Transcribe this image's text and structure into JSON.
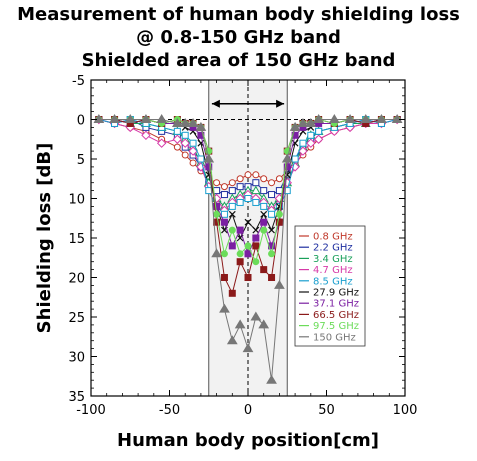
{
  "chart_data": {
    "type": "line",
    "title_lines": [
      "Measurement  of human body shielding loss",
      "@ 0.8-150  GHz band",
      "Shielded  area of 150  GHz band"
    ],
    "xlabel": "Human body position[cm]",
    "ylabel": "Shielding loss [dB]",
    "xlim": [
      -100,
      100
    ],
    "ylim": [
      -5,
      35
    ],
    "y_inverted": true,
    "xticks": [
      -100,
      -50,
      0,
      50,
      100
    ],
    "yticks": [
      -5,
      0,
      5,
      10,
      15,
      20,
      25,
      30,
      35
    ],
    "grid": "dashed-zero-lines",
    "legend_position": "right-center",
    "shielded_area": {
      "x": [
        -25,
        25
      ]
    },
    "series": [
      {
        "name": "0.8 GHz",
        "color": "#c0392b",
        "marker": "circle-open",
        "x": [
          -95,
          -85,
          -75,
          -65,
          -55,
          -45,
          -40,
          -35,
          -30,
          -25,
          -20,
          -15,
          -10,
          -5,
          0,
          5,
          10,
          15,
          20,
          25,
          30,
          35,
          40,
          45,
          55,
          65,
          75,
          85,
          95
        ],
        "y": [
          0,
          0.5,
          1,
          1.5,
          2.5,
          3.5,
          4.5,
          5.5,
          6.5,
          7.5,
          8,
          8.5,
          8,
          7.5,
          7,
          7,
          7.5,
          8,
          7.5,
          6.5,
          5.5,
          4.5,
          3.5,
          2.5,
          1.5,
          1,
          0.5,
          0,
          0
        ]
      },
      {
        "name": "2.2 GHz",
        "color": "#1f2fa0",
        "marker": "square-open",
        "x": [
          -95,
          -85,
          -75,
          -65,
          -55,
          -45,
          -40,
          -35,
          -30,
          -25,
          -20,
          -15,
          -10,
          -5,
          0,
          5,
          10,
          15,
          20,
          25,
          30,
          35,
          40,
          45,
          55,
          65,
          75,
          85,
          95
        ],
        "y": [
          0,
          0.5,
          0,
          1,
          1.5,
          2,
          3.5,
          4.5,
          6,
          8,
          9,
          9.5,
          9,
          8.5,
          8.5,
          8,
          9,
          9.5,
          9,
          7,
          5,
          3.5,
          2.5,
          1.5,
          1,
          0.5,
          0,
          0.5,
          0
        ]
      },
      {
        "name": "3.4 GHz",
        "color": "#1aa05a",
        "marker": "triangle-open",
        "x": [
          -95,
          -85,
          -75,
          -65,
          -55,
          -45,
          -40,
          -35,
          -30,
          -25,
          -20,
          -15,
          -10,
          -5,
          0,
          5,
          10,
          15,
          20,
          25,
          30,
          35,
          40,
          45,
          55,
          65,
          75,
          85,
          95
        ],
        "y": [
          0,
          0,
          0.5,
          0.5,
          1,
          1.5,
          2.5,
          3.5,
          5.5,
          8,
          10,
          11,
          10,
          9.5,
          9,
          9,
          10,
          11,
          10,
          8,
          5.5,
          3.5,
          2,
          1.5,
          1,
          0.5,
          0.5,
          0,
          0
        ]
      },
      {
        "name": "4.7 GHz",
        "color": "#d63aa8",
        "marker": "diamond-open",
        "x": [
          -95,
          -85,
          -75,
          -65,
          -55,
          -45,
          -40,
          -35,
          -30,
          -25,
          -20,
          -15,
          -10,
          -5,
          0,
          5,
          10,
          15,
          20,
          25,
          30,
          35,
          40,
          45,
          55,
          65,
          75,
          85,
          95
        ],
        "y": [
          0,
          0.5,
          1,
          2,
          3,
          2.5,
          3,
          4,
          6,
          8.5,
          10,
          11.5,
          10.5,
          10,
          9.5,
          10,
          10.5,
          11.5,
          10,
          8,
          6,
          4,
          3,
          2.5,
          1.5,
          1,
          0.5,
          0.5,
          0
        ]
      },
      {
        "name": "8.5 GHz",
        "color": "#1a9fcf",
        "marker": "square-open",
        "x": [
          -95,
          -85,
          -75,
          -65,
          -55,
          -45,
          -40,
          -35,
          -30,
          -25,
          -20,
          -15,
          -10,
          -5,
          0,
          5,
          10,
          15,
          20,
          25,
          30,
          35,
          40,
          45,
          55,
          65,
          75,
          85,
          95
        ],
        "y": [
          0,
          0.5,
          0,
          0.5,
          1,
          1.5,
          2,
          3,
          5,
          9,
          11,
          12,
          11,
          10.5,
          10,
          10.5,
          11,
          12,
          11,
          9,
          5,
          3,
          2,
          1.5,
          1,
          0.5,
          0,
          0.5,
          0
        ]
      },
      {
        "name": "27.9 GHz",
        "color": "#111111",
        "marker": "x",
        "x": [
          -95,
          -85,
          -75,
          -65,
          -55,
          -45,
          -40,
          -35,
          -30,
          -25,
          -20,
          -15,
          -10,
          -5,
          0,
          5,
          10,
          15,
          20,
          25,
          30,
          35,
          40,
          45,
          55,
          65,
          75,
          85,
          95
        ],
        "y": [
          0,
          0,
          0.5,
          0,
          0.5,
          0.5,
          1,
          1.5,
          3,
          7,
          11,
          14,
          12,
          15,
          13,
          14,
          12,
          14,
          11,
          7,
          3,
          1.5,
          1,
          0.5,
          0.5,
          0,
          0.5,
          0,
          0
        ]
      },
      {
        "name": "37.1 GHz",
        "color": "#7b1fa2",
        "marker": "square-filled",
        "x": [
          -95,
          -85,
          -75,
          -65,
          -55,
          -45,
          -40,
          -35,
          -30,
          -25,
          -20,
          -15,
          -10,
          -5,
          0,
          5,
          10,
          15,
          20,
          25,
          30,
          35,
          40,
          45,
          55,
          65,
          75,
          85,
          95
        ],
        "y": [
          0,
          0,
          0.5,
          0,
          0.5,
          0.5,
          0.5,
          1,
          2,
          6,
          11,
          13,
          16,
          14,
          17,
          15,
          13,
          16,
          13,
          6,
          2,
          1,
          0.5,
          0.5,
          0.5,
          0,
          0.5,
          0,
          0
        ]
      },
      {
        "name": "66.5 GHz",
        "color": "#8b1a1a",
        "marker": "square-filled",
        "x": [
          -95,
          -85,
          -75,
          -65,
          -55,
          -45,
          -40,
          -35,
          -30,
          -25,
          -20,
          -15,
          -10,
          -5,
          0,
          5,
          10,
          15,
          20,
          25,
          30,
          35,
          40,
          45,
          55,
          65,
          75,
          85,
          95
        ],
        "y": [
          0,
          0,
          0.5,
          0,
          0.5,
          0,
          0.5,
          0.5,
          1,
          4,
          13,
          20,
          22,
          18,
          20,
          16,
          19,
          20,
          13,
          4,
          1,
          0.5,
          0.5,
          0,
          0.5,
          0,
          0.5,
          0,
          0
        ]
      },
      {
        "name": "97.5 GHz",
        "color": "#6cdc5a",
        "marker": "circle-filled",
        "x": [
          -95,
          -85,
          -75,
          -65,
          -55,
          -45,
          -40,
          -35,
          -30,
          -25,
          -20,
          -15,
          -10,
          -5,
          0,
          5,
          10,
          15,
          20,
          25,
          30,
          35,
          40,
          45,
          55,
          65,
          75,
          85,
          95
        ],
        "y": [
          0,
          0,
          0,
          0,
          0.5,
          0,
          0.5,
          0.5,
          1,
          4,
          12,
          17,
          14,
          17,
          16,
          18,
          14,
          17,
          12,
          4,
          1,
          0.5,
          0.5,
          0,
          0.5,
          0,
          0,
          0,
          0
        ]
      },
      {
        "name": "150 GHz",
        "color": "#777777",
        "marker": "triangle-filled",
        "x": [
          -95,
          -85,
          -75,
          -65,
          -55,
          -45,
          -40,
          -35,
          -30,
          -25,
          -20,
          -15,
          -10,
          -5,
          0,
          5,
          10,
          15,
          20,
          25,
          30,
          35,
          40,
          45,
          55,
          65,
          75,
          85,
          95
        ],
        "y": [
          0,
          0,
          0,
          0,
          0,
          0.5,
          0.5,
          0.5,
          1,
          5,
          17,
          24,
          28,
          26,
          29,
          25,
          26,
          33,
          21,
          5,
          1,
          0.5,
          0.5,
          0,
          0,
          0,
          0,
          0,
          0
        ]
      }
    ]
  }
}
